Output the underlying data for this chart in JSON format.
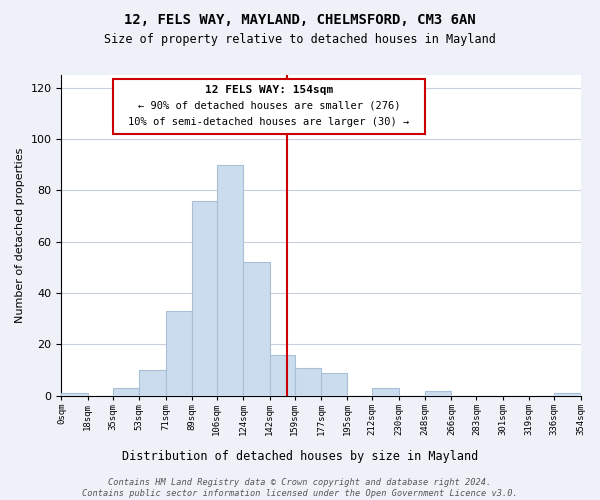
{
  "title": "12, FELS WAY, MAYLAND, CHELMSFORD, CM3 6AN",
  "subtitle": "Size of property relative to detached houses in Mayland",
  "xlabel": "Distribution of detached houses by size in Mayland",
  "ylabel": "Number of detached properties",
  "bar_edges": [
    0,
    18,
    35,
    53,
    71,
    89,
    106,
    124,
    142,
    159,
    177,
    195,
    212,
    230,
    248,
    266,
    283,
    301,
    319,
    336,
    354
  ],
  "bar_heights": [
    1,
    0,
    3,
    10,
    33,
    76,
    90,
    52,
    16,
    11,
    9,
    0,
    3,
    0,
    2,
    0,
    0,
    0,
    0,
    1
  ],
  "bar_color": "#ccdcef",
  "bar_edgecolor": "#a8bfd8",
  "vline_x": 154,
  "vline_color": "#cc0000",
  "xtick_labels": [
    "0sqm",
    "18sqm",
    "35sqm",
    "53sqm",
    "71sqm",
    "89sqm",
    "106sqm",
    "124sqm",
    "142sqm",
    "159sqm",
    "177sqm",
    "195sqm",
    "212sqm",
    "230sqm",
    "248sqm",
    "266sqm",
    "283sqm",
    "301sqm",
    "319sqm",
    "336sqm",
    "354sqm"
  ],
  "ylim": [
    0,
    125
  ],
  "yticks": [
    0,
    20,
    40,
    60,
    80,
    100,
    120
  ],
  "annotation_title": "12 FELS WAY: 154sqm",
  "annotation_line1": "← 90% of detached houses are smaller (276)",
  "annotation_line2": "10% of semi-detached houses are larger (30) →",
  "footer_line1": "Contains HM Land Registry data © Crown copyright and database right 2024.",
  "footer_line2": "Contains public sector information licensed under the Open Government Licence v3.0.",
  "background_color": "#eef2f8",
  "plot_bg_color": "#ffffff",
  "grid_color": "#c8d0dc"
}
